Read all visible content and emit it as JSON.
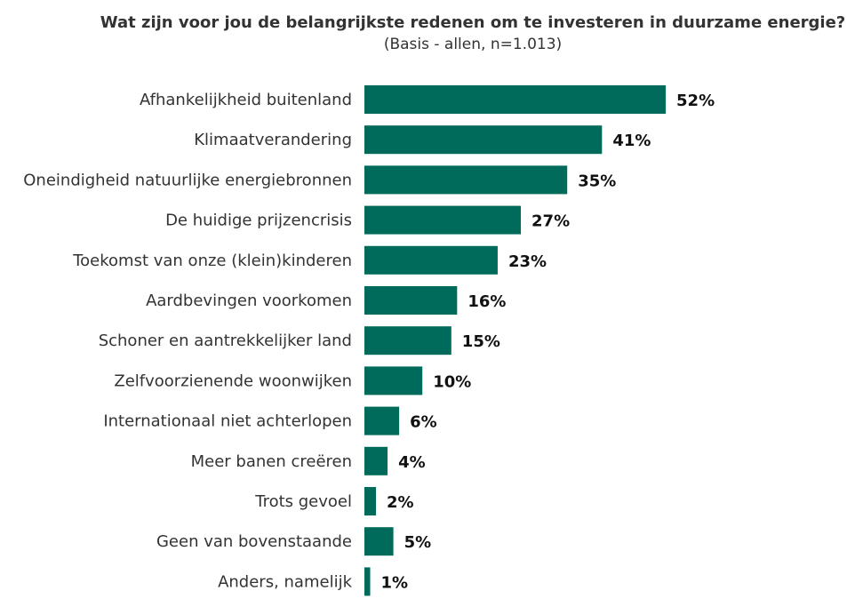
{
  "chart_data": {
    "type": "bar",
    "orientation": "horizontal",
    "title": "Wat zijn voor jou de belangrijkste redenen om te investeren in duurzame energie?",
    "subtitle": "(Basis - allen, n=1.013)",
    "categories": [
      "Afhankelijkheid buitenland",
      "Klimaatverandering",
      "Oneindigheid natuurlijke energiebronnen",
      "De huidige prijzencrisis",
      "Toekomst van onze (klein)kinderen",
      "Aardbevingen voorkomen",
      "Schoner en aantrekkelijker land",
      "Zelfvoorzienende woonwijken",
      "Internationaal niet achterlopen",
      "Meer banen creëren",
      "Trots gevoel",
      "Geen van bovenstaande",
      "Anders, namelijk"
    ],
    "values": [
      52,
      41,
      35,
      27,
      23,
      16,
      15,
      10,
      6,
      4,
      2,
      5,
      1
    ],
    "value_labels": [
      "52%",
      "41%",
      "35%",
      "27%",
      "23%",
      "16%",
      "15%",
      "10%",
      "6%",
      "4%",
      "2%",
      "5%",
      "1%"
    ],
    "unit": "%",
    "bar_color": "#006b5a",
    "grid": false,
    "legend": "none"
  }
}
